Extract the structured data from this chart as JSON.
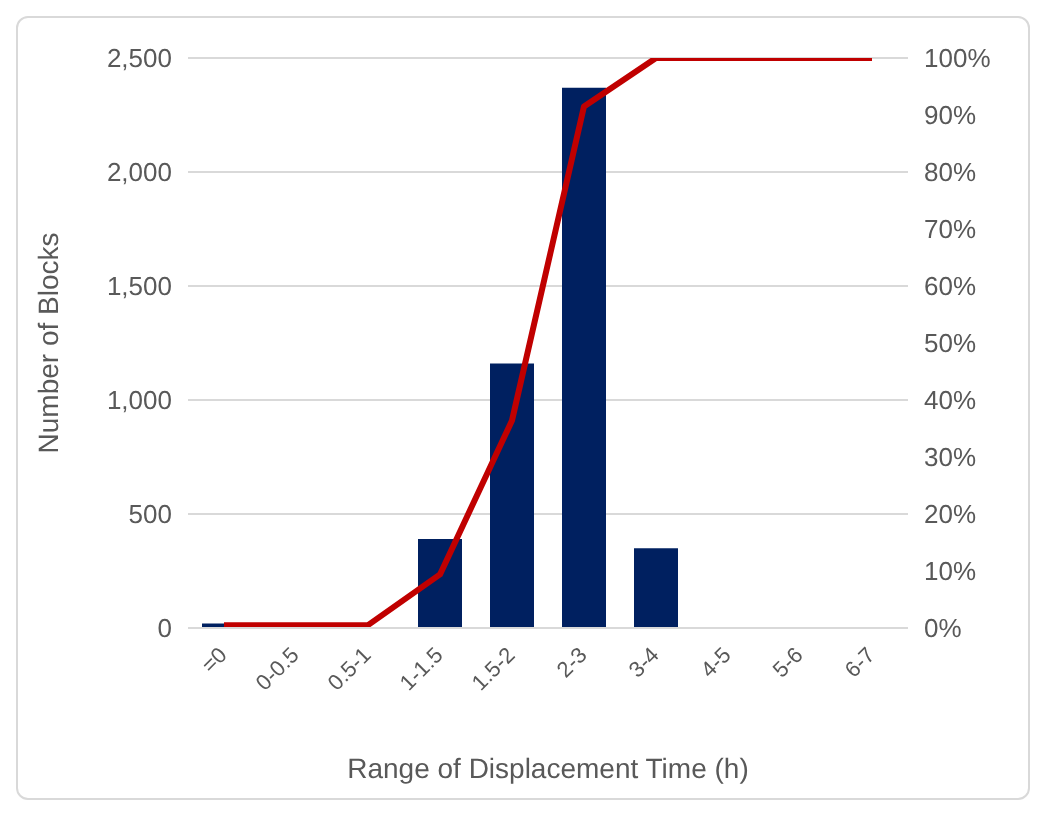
{
  "chart_data": {
    "type": "bar",
    "xlabel": "Range of Displacement Time (h)",
    "ylabel": "Number of Blocks",
    "categories": [
      "=0",
      "0-0.5",
      "0.5-1",
      "1-1.5",
      "1.5-2",
      "2-3",
      "3-4",
      "4-5",
      "5-6",
      "6-7"
    ],
    "series": [
      {
        "color": "#002060",
        "values": [
          20,
          0,
          0,
          390,
          1160,
          2370,
          350,
          0,
          0,
          0
        ]
      },
      {
        "type": "line",
        "axis": "y2",
        "color": "#c00000",
        "values": [
          0.5,
          0.5,
          0.5,
          9.4,
          36.4,
          91.5,
          100,
          100,
          100,
          100
        ]
      }
    ],
    "ylim": [
      0,
      2500
    ],
    "yticks": [
      {
        "value": 0,
        "label": "0"
      },
      {
        "value": 500,
        "label": "500"
      },
      {
        "value": 1000,
        "label": "1,000"
      },
      {
        "value": 1500,
        "label": "1,500"
      },
      {
        "value": 2000,
        "label": "2,000"
      },
      {
        "value": 2500,
        "label": "2,500"
      }
    ],
    "y2lim": [
      0,
      100
    ],
    "y2ticks": [
      {
        "value": 0,
        "label": "0%"
      },
      {
        "value": 10,
        "label": "10%"
      },
      {
        "value": 20,
        "label": "20%"
      },
      {
        "value": 30,
        "label": "30%"
      },
      {
        "value": 40,
        "label": "40%"
      },
      {
        "value": 50,
        "label": "50%"
      },
      {
        "value": 60,
        "label": "60%"
      },
      {
        "value": 70,
        "label": "70%"
      },
      {
        "value": 80,
        "label": "80%"
      },
      {
        "value": 90,
        "label": "90%"
      },
      {
        "value": 100,
        "label": "100%"
      }
    ],
    "grid": "y",
    "marker": "none"
  }
}
